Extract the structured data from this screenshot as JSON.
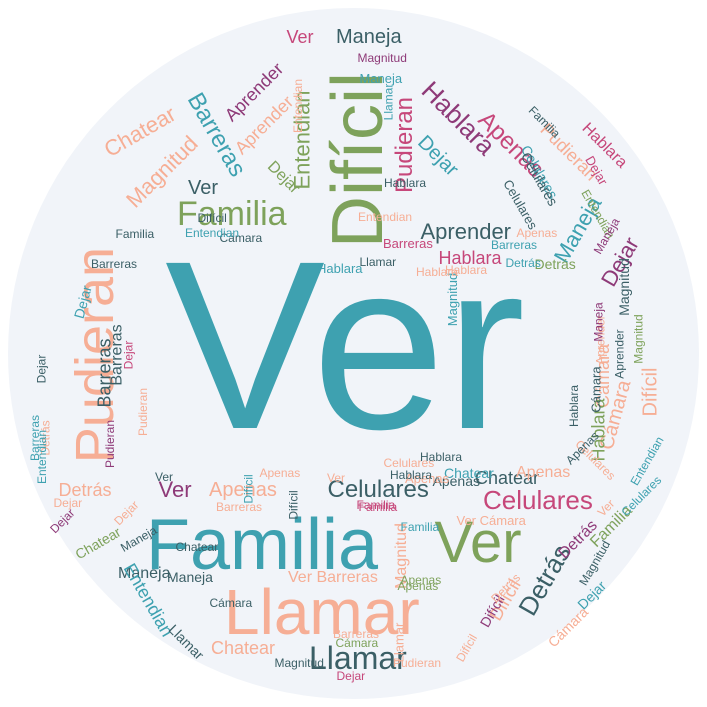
{
  "background": "#f1f4f9",
  "colors": {
    "teal": "#3ea1b0",
    "green": "#7ea25b",
    "salmon": "#f6ae95",
    "plum": "#8e3a78",
    "magenta": "#c6477a",
    "slate": "#3b5f66"
  },
  "words": [
    {
      "text": "Ver",
      "color": "teal"
    },
    {
      "text": "Difícil",
      "color": "green"
    },
    {
      "text": "Familia",
      "color": "teal"
    },
    {
      "text": "Llamar",
      "color": "salmon"
    },
    {
      "text": "Ver",
      "color": "green"
    },
    {
      "text": "Pudieran",
      "color": "salmon"
    },
    {
      "text": "Familia",
      "color": "green"
    },
    {
      "text": "Celulares",
      "color": "slate"
    },
    {
      "text": "Celulares",
      "color": "magenta"
    },
    {
      "text": "Llamar",
      "color": "slate"
    },
    {
      "text": "Detrás",
      "color": "slate"
    },
    {
      "text": "Chatear",
      "color": "salmon"
    },
    {
      "text": "Hablara",
      "color": "plum"
    },
    {
      "text": "Apenas",
      "color": "magenta"
    },
    {
      "text": "Aprender",
      "color": "slate"
    },
    {
      "text": "Pudieran",
      "color": "magenta"
    },
    {
      "text": "Magnitud",
      "color": "salmon"
    },
    {
      "text": "Barreras",
      "color": "teal"
    },
    {
      "text": "Entendian",
      "color": "green"
    },
    {
      "text": "Maneja",
      "color": "teal"
    },
    {
      "text": "Dejar",
      "color": "plum"
    },
    {
      "text": "Cámara",
      "color": "salmon"
    },
    {
      "text": "Difícil",
      "color": "salmon"
    },
    {
      "text": "Ver",
      "color": "plum"
    },
    {
      "text": "Apenas",
      "color": "salmon"
    },
    {
      "text": "Chatear",
      "color": "slate"
    },
    {
      "text": "Difícil",
      "color": "salmon"
    },
    {
      "text": "Detrás",
      "color": "salmon"
    },
    {
      "text": "Chatear",
      "color": "salmon"
    },
    {
      "text": "Maneja",
      "color": "slate"
    },
    {
      "text": "Barreras",
      "color": "slate"
    },
    {
      "text": "Pudieran",
      "color": "salmon"
    },
    {
      "text": "Hablara",
      "color": "magenta"
    },
    {
      "text": "Dejar",
      "color": "teal"
    },
    {
      "text": "Aprender",
      "color": "plum"
    },
    {
      "text": "Ver",
      "color": "slate"
    },
    {
      "text": "Aprender",
      "color": "salmon"
    },
    {
      "text": "Dejar",
      "color": "green"
    },
    {
      "text": "Manejа",
      "color": "slate"
    },
    {
      "text": "Entendian",
      "color": "teal"
    },
    {
      "text": "Ver Barreras",
      "color": "salmon"
    },
    {
      "text": "Cámara",
      "color": "salmon"
    },
    {
      "text": "Hablara",
      "color": "green"
    },
    {
      "text": "Detrás",
      "color": "plum"
    },
    {
      "text": "Ver",
      "color": "magenta"
    },
    {
      "text": "Apenas",
      "color": "salmon"
    },
    {
      "text": "Hablara",
      "color": "magenta"
    },
    {
      "text": "Magnitud",
      "color": "slate"
    },
    {
      "text": "Familia",
      "color": "green"
    },
    {
      "text": "Aprender",
      "color": "slate"
    },
    {
      "text": "Dejar",
      "color": "teal"
    },
    {
      "text": "Celulares",
      "color": "teal"
    },
    {
      "text": "Entendian",
      "color": "green"
    },
    {
      "text": "Magnitud",
      "color": "salmon"
    },
    {
      "text": "Cámara",
      "color": "salmon"
    },
    {
      "text": "Chatear",
      "color": "green"
    },
    {
      "text": "Dejar",
      "color": "teal"
    },
    {
      "text": "Pudieran",
      "color": "salmon"
    },
    {
      "text": "Llamar",
      "color": "slate"
    },
    {
      "text": "Maneja",
      "color": "slate"
    },
    {
      "text": "Apenas",
      "color": "slate"
    },
    {
      "text": "Familia",
      "color": "magenta"
    },
    {
      "text": "Barreras",
      "color": "slate"
    },
    {
      "text": "Detrás",
      "color": "green"
    },
    {
      "text": "Hablara",
      "color": "teal"
    },
    {
      "text": "Difícil",
      "color": "plum"
    },
    {
      "text": "Cámara",
      "color": "slate"
    },
    {
      "text": "Entendian",
      "color": "teal"
    },
    {
      "text": "Chatear",
      "color": "teal"
    },
    {
      "text": "Ver Cámara",
      "color": "salmon"
    },
    {
      "text": "Celulares",
      "color": "slate"
    },
    {
      "text": "Magnitud",
      "color": "teal"
    },
    {
      "text": "Dejar",
      "color": "magenta"
    },
    {
      "text": "Maneja",
      "color": "teal"
    },
    {
      "text": "Apenas",
      "color": "green"
    },
    {
      "text": "Barreras",
      "color": "magenta"
    },
    {
      "text": "Celulares",
      "color": "slate"
    },
    {
      "text": "Pudieran",
      "color": "salmon"
    },
    {
      "text": "Llamar",
      "color": "salmon"
    },
    {
      "text": "Difícil",
      "color": "salmon"
    },
    {
      "text": "Apenas",
      "color": "salmon"
    },
    {
      "text": "Familia",
      "color": "slate"
    },
    {
      "text": "Barreras",
      "color": "teal"
    },
    {
      "text": "Hablara",
      "color": "slate"
    },
    {
      "text": "Dejar",
      "color": "salmon"
    },
    {
      "text": "Detrás",
      "color": "salmon"
    },
    {
      "text": "Cámara",
      "color": "slate"
    },
    {
      "text": "Maneja",
      "color": "slate"
    },
    {
      "text": "Ver",
      "color": "slate"
    },
    {
      "text": "Apenas",
      "color": "green"
    },
    {
      "text": "Familia",
      "color": "magenta"
    },
    {
      "text": "Dejar",
      "color": "salmon"
    },
    {
      "text": "Chatear",
      "color": "slate"
    },
    {
      "text": "Magnitud",
      "color": "plum"
    },
    {
      "text": "Hablara",
      "color": "slate"
    },
    {
      "text": "Entendian",
      "color": "salmon"
    },
    {
      "text": "Pudieran",
      "color": "plum"
    },
    {
      "text": "Barreras",
      "color": "slate"
    },
    {
      "text": "Difícil",
      "color": "teal"
    },
    {
      "text": "Detrás",
      "color": "salmon"
    },
    {
      "text": "Dejar",
      "color": "plum"
    },
    {
      "text": "Celulares",
      "color": "salmon"
    },
    {
      "text": "Aprender",
      "color": "salmon"
    },
    {
      "text": "Llamar",
      "color": "teal"
    },
    {
      "text": "Apenas",
      "color": "salmon"
    },
    {
      "text": "Hablara",
      "color": "salmon"
    },
    {
      "text": "Cámara",
      "color": "slate"
    },
    {
      "text": "Magnitud",
      "color": "green"
    },
    {
      "text": "Maneja",
      "color": "plum"
    },
    {
      "text": "Familia",
      "color": "slate"
    },
    {
      "text": "Barreras",
      "color": "salmon"
    },
    {
      "text": "Dejar",
      "color": "magenta"
    },
    {
      "text": "Entendian",
      "color": "teal"
    },
    {
      "text": "Difícil",
      "color": "slate"
    },
    {
      "text": "Ver",
      "color": "salmon"
    },
    {
      "text": "Celulares",
      "color": "teal"
    },
    {
      "text": "Hablara",
      "color": "salmon"
    },
    {
      "text": "Dejar",
      "color": "slate"
    },
    {
      "text": "Detrás",
      "color": "teal"
    },
    {
      "text": "Magnitud",
      "color": "slate"
    },
    {
      "text": "Apenas",
      "color": "slate"
    },
    {
      "text": "Llamar",
      "color": "slate"
    },
    {
      "text": "Maneja",
      "color": "plum"
    },
    {
      "text": "Entendian",
      "color": "salmon"
    },
    {
      "text": "Barreras",
      "color": "teal"
    },
    {
      "text": "Hablara",
      "color": "slate"
    },
    {
      "text": "Dejar",
      "color": "magenta"
    },
    {
      "text": "Difícil",
      "color": "slate"
    },
    {
      "text": "Cámara",
      "color": "green"
    },
    {
      "text": "Ver",
      "color": "salmon"
    },
    {
      "text": "Magnitud",
      "color": "slate"
    },
    {
      "text": "Apenas",
      "color": "salmon"
    },
    {
      "text": "Celulares",
      "color": "salmon"
    },
    {
      "text": "Familia",
      "color": "teal"
    },
    {
      "text": "Barreras",
      "color": "salmon"
    },
    {
      "text": "Entendian",
      "color": "teal"
    },
    {
      "text": "Hablara",
      "color": "slate"
    }
  ]
}
